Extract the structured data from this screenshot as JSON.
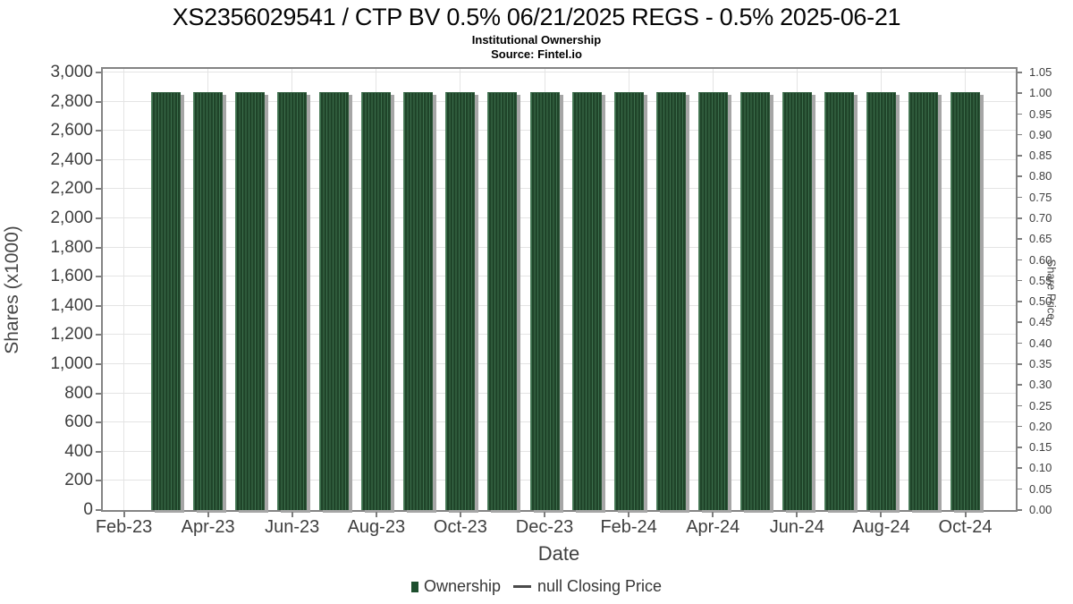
{
  "chart_data": {
    "type": "bar",
    "title": "XS2356029541 / CTP BV 0.5% 06/21/2025 REGS - 0.5% 2025-06-21",
    "subtitle": "Institutional Ownership",
    "source": "Source: Fintel.io",
    "xlabel": "Date",
    "ylabel": "Shares (x1000)",
    "ylabel_right": "Share Price",
    "categories": [
      "Mar-23",
      "Apr-23",
      "May-23",
      "Jun-23",
      "Jul-23",
      "Aug-23",
      "Sep-23",
      "Oct-23",
      "Nov-23",
      "Dec-23",
      "Jan-24",
      "Feb-24",
      "Mar-24",
      "Apr-24",
      "May-24",
      "Jun-24",
      "Jul-24",
      "Aug-24",
      "Sep-24",
      "Oct-24"
    ],
    "series": [
      {
        "name": "Ownership",
        "type": "bar",
        "color": "#1e4c2e",
        "values": [
          2866,
          2866,
          2866,
          2866,
          2866,
          2866,
          2866,
          2866,
          2866,
          2866,
          2866,
          2866,
          2866,
          2866,
          2866,
          2866,
          2866,
          2866,
          2866,
          2866
        ]
      },
      {
        "name": "null Closing Price",
        "type": "line",
        "color": "#4a4a4a",
        "values": []
      }
    ],
    "ylim": [
      0,
      3000
    ],
    "ytick_step": 200,
    "yticks": [
      "0",
      "200",
      "400",
      "600",
      "800",
      "1,000",
      "1,200",
      "1,400",
      "1,600",
      "1,800",
      "2,000",
      "2,200",
      "2,400",
      "2,600",
      "2,800",
      "3,000"
    ],
    "ylim_right": [
      0,
      1.05
    ],
    "ytick_step_right": 0.05,
    "yticks_right": [
      "0.00",
      "0.05",
      "0.10",
      "0.15",
      "0.20",
      "0.25",
      "0.30",
      "0.35",
      "0.40",
      "0.45",
      "0.50",
      "0.55",
      "0.60",
      "0.65",
      "0.70",
      "0.75",
      "0.80",
      "0.85",
      "0.90",
      "0.95",
      "1.00",
      "1.05"
    ],
    "xticks": [
      "Feb-23",
      "Apr-23",
      "Jun-23",
      "Aug-23",
      "Oct-23",
      "Dec-23",
      "Feb-24",
      "Apr-24",
      "Jun-24",
      "Aug-24",
      "Oct-24"
    ],
    "grid": true,
    "legend_position": "bottom",
    "bar_hatch": "vertical-lines",
    "bar_shadow_color": "#a6a6a6"
  }
}
